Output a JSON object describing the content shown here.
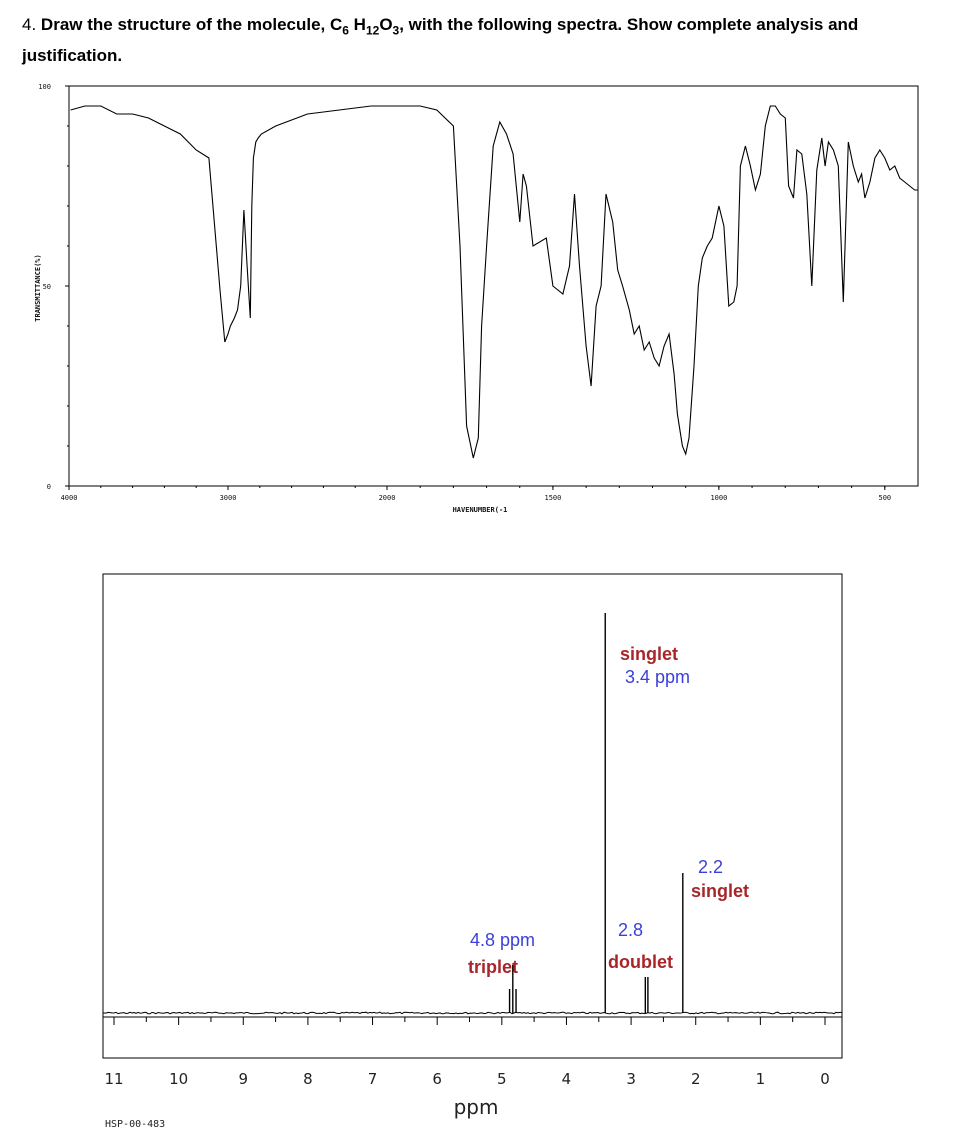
{
  "question": {
    "number": "4.",
    "text_before": "Draw the structure of the molecule, C",
    "sub1": "6",
    "text_mid1": " H",
    "sub2": "12",
    "text_mid2": "O",
    "sub3": "3",
    "text_after": ", with the following spectra. Show complete analysis and justification."
  },
  "chart_data": [
    {
      "type": "line",
      "xlabel": "HAVENUMBER(-1",
      "ylabel": "TRANSMITTANCE(%)",
      "x_ticks": [
        "4000",
        "3000",
        "2000",
        "1500",
        "1000",
        "500"
      ],
      "y_ticks": [
        "100",
        "50",
        "0"
      ],
      "xlim": [
        4000,
        400
      ],
      "ylim": [
        0,
        100
      ],
      "grid": false,
      "series": [
        {
          "x": [
            3990,
            3900,
            3800,
            3700,
            3600,
            3500,
            3400,
            3300,
            3200,
            3120,
            3050,
            3020,
            3000,
            2985,
            2960,
            2940,
            2920,
            2900,
            2880,
            2860,
            2850,
            2840,
            2825,
            2810,
            2790,
            2700,
            2500,
            2300,
            2100,
            2000,
            1900,
            1850,
            1800,
            1780,
            1760,
            1740,
            1725,
            1715,
            1700,
            1680,
            1660,
            1640,
            1620,
            1600,
            1590,
            1580,
            1560,
            1520,
            1500,
            1470,
            1450,
            1435,
            1420,
            1400,
            1385,
            1370,
            1355,
            1340,
            1320,
            1305,
            1290,
            1270,
            1255,
            1240,
            1225,
            1210,
            1195,
            1180,
            1165,
            1150,
            1135,
            1125,
            1110,
            1100,
            1090,
            1075,
            1062,
            1050,
            1035,
            1020,
            1000,
            985,
            970,
            955,
            945,
            935,
            920,
            905,
            890,
            875,
            860,
            845,
            830,
            815,
            800,
            790,
            775,
            765,
            750,
            735,
            720,
            705,
            690,
            680,
            670,
            655,
            640,
            625,
            610,
            595,
            580,
            570,
            560,
            545,
            530,
            515,
            500,
            485,
            470,
            455,
            440,
            425,
            410,
            400
          ],
          "y": [
            94,
            95,
            95,
            93,
            93,
            92,
            90,
            88,
            84,
            82,
            49,
            36,
            38,
            40,
            42,
            44,
            50,
            69,
            55,
            42,
            70,
            82,
            86,
            87,
            88,
            90,
            93,
            94,
            95,
            95,
            95,
            94,
            90,
            60,
            15,
            7,
            12,
            40,
            60,
            85,
            91,
            88,
            83,
            66,
            78,
            75,
            60,
            62,
            50,
            48,
            55,
            73,
            55,
            35,
            25,
            45,
            50,
            73,
            66,
            54,
            50,
            44,
            38,
            40,
            34,
            36,
            32,
            30,
            35,
            38,
            28,
            18,
            10,
            8,
            12,
            30,
            50,
            57,
            60,
            62,
            70,
            65,
            45,
            46,
            50,
            80,
            85,
            80,
            74,
            78,
            90,
            95,
            95,
            93,
            92,
            75,
            72,
            84,
            83,
            73,
            50,
            79,
            87,
            80,
            86,
            84,
            80,
            46,
            86,
            80,
            76,
            78,
            72,
            76,
            82,
            84,
            82,
            79,
            80,
            77,
            76,
            75,
            74,
            74
          ]
        }
      ]
    },
    {
      "type": "line",
      "xlabel": "ppm",
      "x_ticks": [
        "11",
        "10",
        "9",
        "8",
        "7",
        "6",
        "5",
        "4",
        "3",
        "2",
        "1",
        "0"
      ],
      "xlim": [
        11.2,
        -0.2
      ],
      "code": "HSP-00-483",
      "peaks": [
        {
          "ppm": 4.88,
          "height": 0.06
        },
        {
          "ppm": 4.83,
          "height": 0.12
        },
        {
          "ppm": 4.78,
          "height": 0.06
        },
        {
          "ppm": 3.4,
          "height": 1.0
        },
        {
          "ppm": 2.78,
          "height": 0.09
        },
        {
          "ppm": 2.74,
          "height": 0.09
        },
        {
          "ppm": 2.2,
          "height": 0.35
        }
      ],
      "annotations": [
        {
          "label": "singlet",
          "ppm": "3.4 ppm"
        },
        {
          "label": "singlet",
          "ppm": "2.2"
        },
        {
          "label": "doublet",
          "ppm": "2.8"
        },
        {
          "label": "triplet",
          "ppm": "4.8 ppm"
        }
      ],
      "colors": {
        "label": "#a8262a",
        "ppm": "#3b3fd9"
      }
    }
  ]
}
